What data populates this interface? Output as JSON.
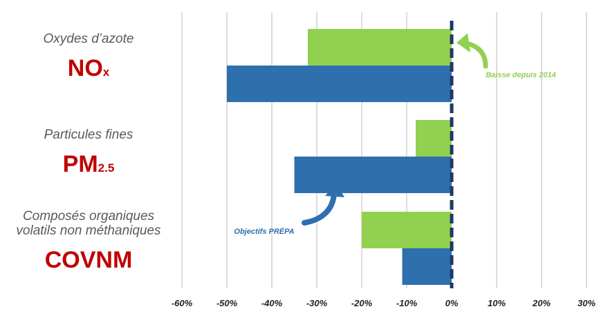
{
  "colors": {
    "baisse": "#92d050",
    "objectifs": "#2e6fad",
    "zero_line": "#1f3864",
    "grid": "#d0d0d0",
    "category_code": "#c00000",
    "category_name": "#595959"
  },
  "chart_data": {
    "type": "bar",
    "orientation": "horizontal",
    "categories": [
      {
        "name_lines": [
          "Oxydes d’azote"
        ],
        "code": "NO",
        "sub": "x"
      },
      {
        "name_lines": [
          "Particules fines"
        ],
        "code": "PM",
        "sub": "2.5"
      },
      {
        "name_lines": [
          "Composés organiques",
          "volatils non méthaniques"
        ],
        "code": "COVNM",
        "sub": ""
      }
    ],
    "series": [
      {
        "name": "Baisse depuis 2014",
        "color": "#92d050",
        "values": [
          -32,
          -8,
          -20
        ]
      },
      {
        "name": "Objectifs PRÉPA",
        "color": "#2e6fad",
        "values": [
          -50,
          -35,
          -11
        ]
      }
    ],
    "xlim": [
      -60,
      30
    ],
    "xticks": [
      -60,
      -50,
      -40,
      -30,
      -20,
      -10,
      0,
      10,
      20,
      30
    ],
    "tick_labels": [
      "-60%",
      "-50%",
      "-40%",
      "-30%",
      "-20%",
      "-10%",
      "0%",
      "10%",
      "20%",
      "30%"
    ],
    "grid": true,
    "annotations": [
      {
        "text": "Baisse depuis 2014",
        "series": 0,
        "points_to_category": 0
      },
      {
        "text": "Objectifs PRÉPA",
        "series": 1,
        "points_to_category": 1
      }
    ]
  }
}
